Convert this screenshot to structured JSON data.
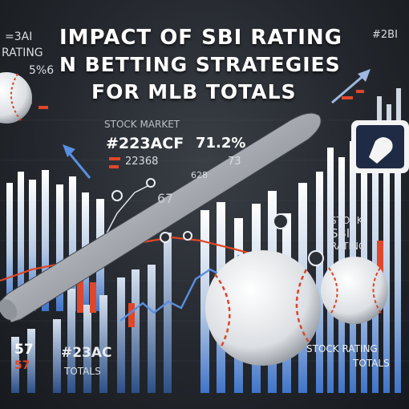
{
  "title": {
    "line1": "IMPACT OF SBI RATING",
    "line2": "N BETTING STRATEGIES",
    "line3": "FOR MLB TOTALS"
  },
  "labels": {
    "top_left_code": "=3AI",
    "top_left_rating": "RATING",
    "top_left_pct": "5%6",
    "top_right_code": "#2BI",
    "stock_market": "STOCK MARKET",
    "hex_code": "#223ACF",
    "percent": "71.2%",
    "num_small": "22368",
    "num_73": "73",
    "num_628": "628",
    "num_67": "67",
    "stock_sbi_line1": "STOCK",
    "stock_sbi_line2": "SBI",
    "stock_sbi_line3": "RATING",
    "bottom_57": "57",
    "bottom_57_red": "57",
    "bottom_hex": "#23AC",
    "bottom_totals": "TOTALS",
    "stock_rating": "STOCK RATING",
    "bottom_right_totals": "TOTALS"
  },
  "icons": {
    "baseball": "baseball-icon",
    "bat": "bat-icon",
    "logo": "mlb-logo-icon"
  },
  "colors": {
    "background": "#24282e",
    "accent_red": "#e0472a",
    "bar_light": "#e9eef4",
    "bar_blue": "#3f74c9",
    "text": "#ffffff"
  }
}
